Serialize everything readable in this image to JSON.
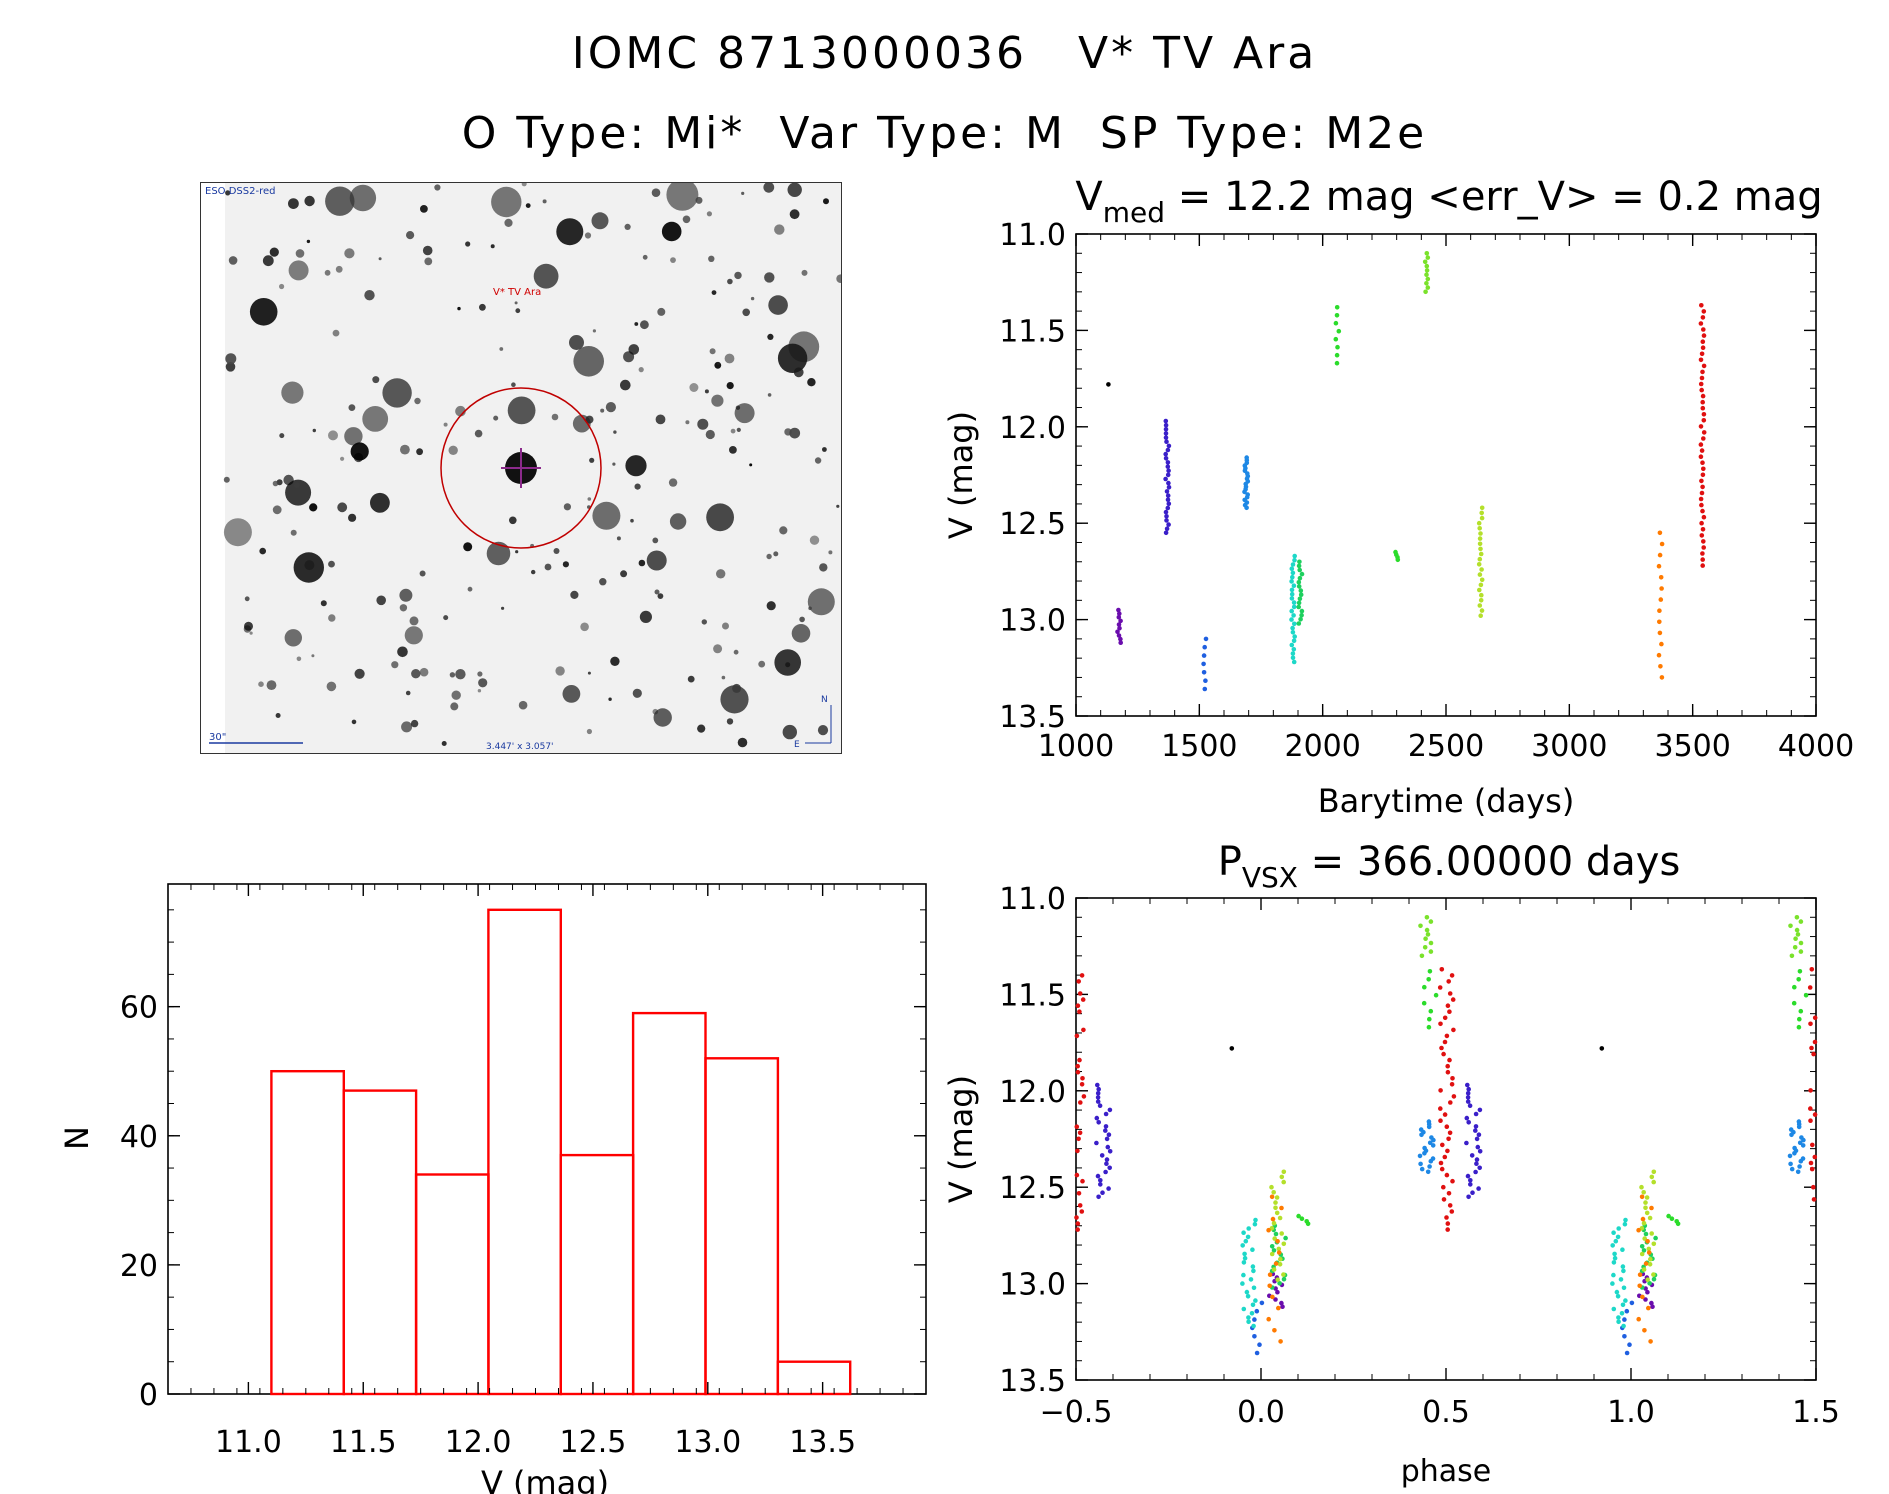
{
  "header": {
    "line1": "IOMC 8713000036   V* TV Ara",
    "line2": "O Type: Mi*  Var Type: M  SP Type: M2e"
  },
  "finder": {
    "survey_label": "ESO DSS2-red",
    "target_label": "V* TV Ara",
    "scale_label": "30\"",
    "fov_label": "3.447' x 3.057'",
    "north": "N",
    "east": "E"
  },
  "chart_data": [
    {
      "id": "lightcurve",
      "type": "scatter",
      "title_main": "V",
      "title_sub": "med",
      "title_rest": " = 12.2 mag <err_V> = 0.2 mag",
      "xlabel": "Barytime (days)",
      "ylabel": "V (mag)",
      "xlim": [
        1000,
        4000
      ],
      "ylim": [
        13.5,
        11.0
      ],
      "xticks": [
        1000,
        1500,
        2000,
        2500,
        3000,
        3500,
        4000
      ],
      "xtick_labels": [
        "1000",
        "1500",
        "2000",
        "2500",
        "3000",
        "3500",
        "4000"
      ],
      "yticks": [
        11.0,
        11.5,
        12.0,
        12.5,
        13.0,
        13.5
      ],
      "ytick_labels": [
        "11.0",
        "11.5",
        "12.0",
        "12.5",
        "13.0",
        "13.5"
      ],
      "groups": [
        {
          "t": 1130,
          "vmin": 11.78,
          "vmax": 11.78,
          "n": 1,
          "color": "#000000"
        },
        {
          "t": 1175,
          "vmin": 12.95,
          "vmax": 13.12,
          "n": 10,
          "color": "#6a0dad"
        },
        {
          "t": 1370,
          "vmin": 11.97,
          "vmax": 12.55,
          "n": 28,
          "color": "#3a1fc9"
        },
        {
          "t": 1520,
          "vmin": 13.1,
          "vmax": 13.36,
          "n": 7,
          "color": "#1f5fe0"
        },
        {
          "t": 1690,
          "vmin": 12.16,
          "vmax": 12.42,
          "n": 20,
          "color": "#1e88e5"
        },
        {
          "t": 1880,
          "vmin": 12.67,
          "vmax": 13.22,
          "n": 26,
          "color": "#1ed8c8"
        },
        {
          "t": 1910,
          "vmin": 12.7,
          "vmax": 13.02,
          "n": 16,
          "color": "#1ed05e"
        },
        {
          "t": 2060,
          "vmin": 11.38,
          "vmax": 11.67,
          "n": 8,
          "color": "#2bdc2b"
        },
        {
          "t": 2300,
          "vmin": 12.65,
          "vmax": 12.69,
          "n": 4,
          "color": "#2bdc2b"
        },
        {
          "t": 2420,
          "vmin": 11.1,
          "vmax": 11.3,
          "n": 10,
          "color": "#7ae22b"
        },
        {
          "t": 2640,
          "vmin": 12.42,
          "vmax": 12.98,
          "n": 22,
          "color": "#b4e02b"
        },
        {
          "t": 3370,
          "vmin": 12.55,
          "vmax": 13.3,
          "n": 14,
          "color": "#ff7a00"
        },
        {
          "t": 3540,
          "vmin": 11.37,
          "vmax": 12.72,
          "n": 44,
          "color": "#e01010"
        }
      ]
    },
    {
      "id": "histogram",
      "type": "bar",
      "title": "",
      "xlabel": "V (mag)",
      "ylabel": "N",
      "xlim": [
        10.65,
        13.95
      ],
      "ylim": [
        0,
        79
      ],
      "bin_edges": [
        11.1,
        11.415,
        11.73,
        12.045,
        12.36,
        12.675,
        12.99,
        13.305,
        13.62
      ],
      "counts": [
        50,
        47,
        34,
        75,
        37,
        59,
        52,
        5
      ],
      "bar_color": "#ff0000",
      "xticks": [
        11.0,
        11.5,
        12.0,
        12.5,
        13.0,
        13.5
      ],
      "xtick_labels": [
        "11.0",
        "11.5",
        "12.0",
        "12.5",
        "13.0",
        "13.5"
      ],
      "yticks": [
        0,
        20,
        40,
        60
      ],
      "ytick_labels": [
        "0",
        "20",
        "40",
        "60"
      ]
    },
    {
      "id": "phased",
      "type": "scatter",
      "title_main": "P",
      "title_sub": "VSX",
      "title_rest": " = 366.00000 days",
      "period_days": 366.0,
      "xlabel": "phase",
      "ylabel": "V (mag)",
      "xlim": [
        -0.5,
        1.5
      ],
      "ylim": [
        13.5,
        11.0
      ],
      "xticks": [
        -0.5,
        0.0,
        0.5,
        1.0,
        1.5
      ],
      "xtick_labels": [
        "−0.5",
        "0.0",
        "0.5",
        "1.0",
        "1.5"
      ],
      "yticks": [
        11.0,
        11.5,
        12.0,
        12.5,
        13.0,
        13.5
      ],
      "ytick_labels": [
        "11.0",
        "11.5",
        "12.0",
        "12.5",
        "13.0",
        "13.5"
      ]
    }
  ]
}
